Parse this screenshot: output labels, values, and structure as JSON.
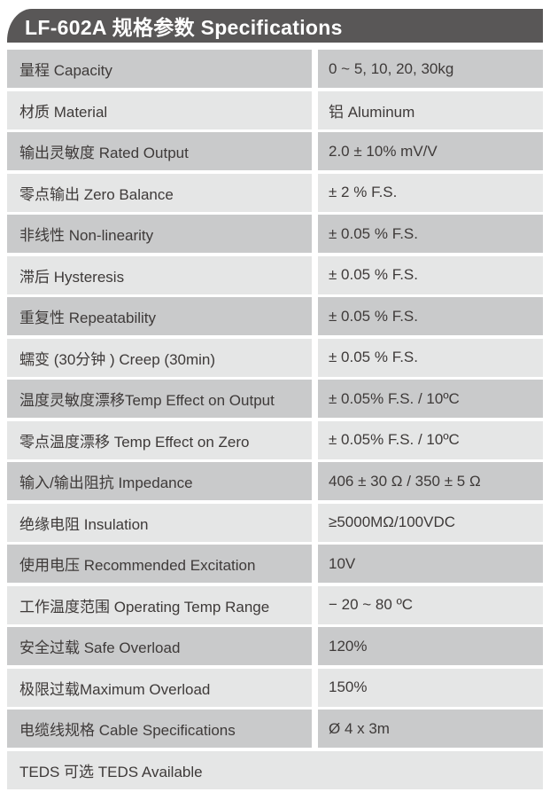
{
  "header": {
    "title": "LF-602A 规格参数 Specifications"
  },
  "colors": {
    "header_bg": "#595757",
    "header_text": "#ffffff",
    "row_dark_bg": "#c9cacb",
    "row_light_bg": "#e5e6e6",
    "row_text": "#3e3a39",
    "page_bg": "#ffffff"
  },
  "table": {
    "rows": [
      {
        "label": "量程 Capacity",
        "value": "0 ~ 5, 10, 20, 30kg"
      },
      {
        "label": "材质 Material",
        "value": "铝 Aluminum"
      },
      {
        "label": "输出灵敏度 Rated Output",
        "value": "2.0 ± 10% mV/V"
      },
      {
        "label": "零点输出 Zero Balance",
        "value": "± 2 % F.S."
      },
      {
        "label": "非线性 Non-linearity",
        "value": "± 0.05 % F.S."
      },
      {
        "label": "滞后 Hysteresis",
        "value": "± 0.05 % F.S."
      },
      {
        "label": "重复性 Repeatability",
        "value": "± 0.05 % F.S."
      },
      {
        "label": "蠕变 (30分钟 ) Creep (30min)",
        "value": "± 0.05 % F.S."
      },
      {
        "label": "温度灵敏度漂移Temp Effect on Output",
        "value": "± 0.05% F.S. / 10ºC"
      },
      {
        "label": "零点温度漂移 Temp Effect on Zero",
        "value": "± 0.05% F.S. / 10ºC"
      },
      {
        "label": "输入/输出阻抗 Impedance",
        "value": "406 ± 30 Ω / 350 ± 5 Ω"
      },
      {
        "label": "绝缘电阻 Insulation",
        "value": "≥5000MΩ/100VDC"
      },
      {
        "label": "使用电压 Recommended Excitation",
        "value": "10V"
      },
      {
        "label": "工作温度范围 Operating Temp Range",
        "value": "− 20 ~ 80 ºC"
      },
      {
        "label": "安全过载 Safe Overload",
        "value": "120%"
      },
      {
        "label": "极限过载Maximum Overload",
        "value": "150%"
      },
      {
        "label": "电缆线规格 Cable Specifications",
        "value": "Ø 4 x 3m"
      },
      {
        "label": "TEDS 可选 TEDS Available",
        "value": "",
        "full_width": true
      }
    ]
  }
}
